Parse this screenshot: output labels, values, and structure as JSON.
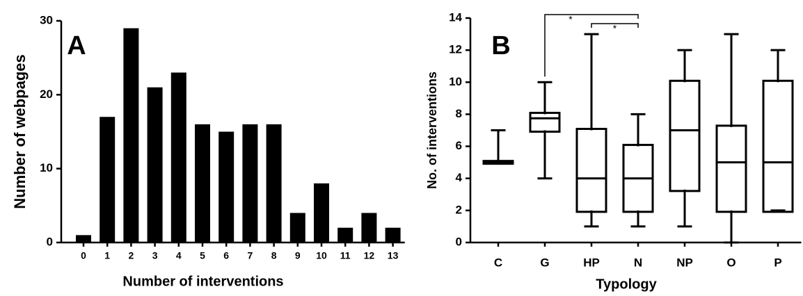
{
  "chart_data": [
    {
      "type": "bar",
      "panel_label": "A",
      "x_label": "Number of interventions",
      "y_label": "Number of webpages",
      "categories": [
        "0",
        "1",
        "2",
        "3",
        "4",
        "5",
        "6",
        "7",
        "8",
        "9",
        "10",
        "11",
        "12",
        "13"
      ],
      "values": [
        1,
        17,
        29,
        21,
        23,
        16,
        15,
        16,
        16,
        4,
        8,
        2,
        4,
        2
      ],
      "color": "#000000",
      "ylim": [
        0,
        30
      ],
      "yticks": [
        0,
        10,
        20,
        30
      ]
    },
    {
      "type": "box",
      "panel_label": "B",
      "x_label": "Typology",
      "y_label": "No. of interventions",
      "categories": [
        "C",
        "G",
        "HP",
        "N",
        "NP",
        "O",
        "P"
      ],
      "boxes": [
        {
          "min": 5,
          "q1": 5,
          "median": 5,
          "q3": 5,
          "max": 7
        },
        {
          "min": 4,
          "q1": 7,
          "median": 7.75,
          "q3": 8,
          "max": 10
        },
        {
          "min": 1,
          "q1": 2,
          "median": 4,
          "q3": 7,
          "max": 13
        },
        {
          "min": 1,
          "q1": 2,
          "median": 4,
          "q3": 6,
          "max": 8
        },
        {
          "min": 1,
          "q1": 3.3,
          "median": 7,
          "q3": 10,
          "max": 12
        },
        {
          "min": 0,
          "q1": 2,
          "median": 5,
          "q3": 7.2,
          "max": 13
        },
        {
          "min": 2,
          "q1": 2,
          "median": 5,
          "q3": 10,
          "max": 12
        }
      ],
      "color": "#000000",
      "annotations": [
        {
          "text": "*",
          "groups": [
            "G",
            "N"
          ]
        },
        {
          "text": "*",
          "groups": [
            "HP",
            "N"
          ]
        }
      ],
      "ylim": [
        0,
        14
      ],
      "yticks": [
        0,
        2,
        4,
        6,
        8,
        10,
        12,
        14
      ]
    }
  ]
}
